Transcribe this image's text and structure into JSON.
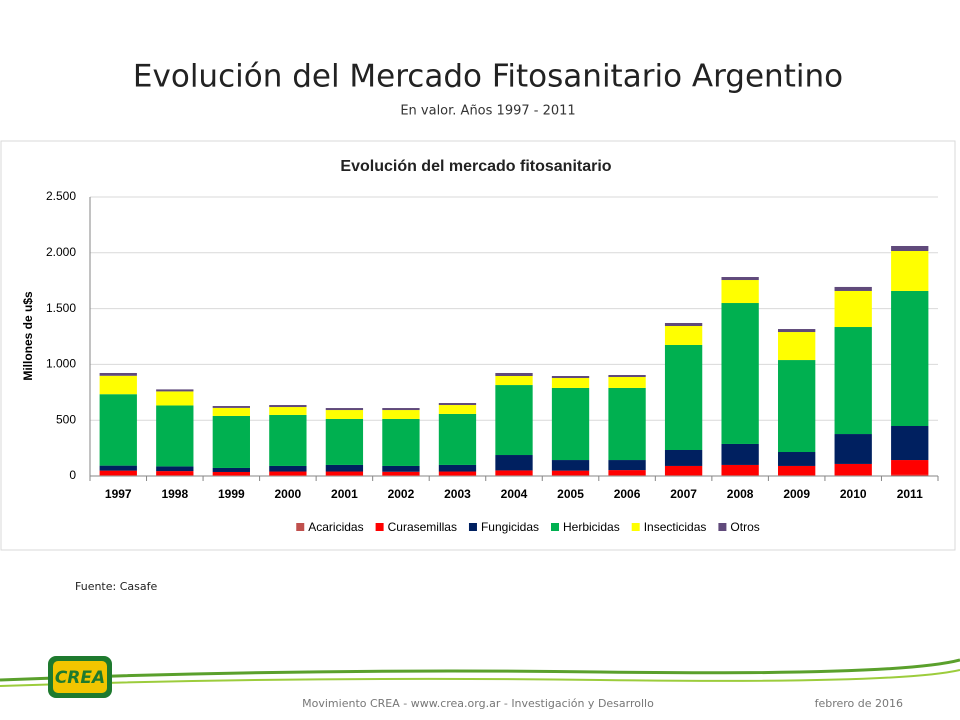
{
  "slide": {
    "title": "Evolución del Mercado Fitosanitario Argentino",
    "subtitle": "En valor. Años 1997 - 2011",
    "source": "Fuente: Casafe",
    "logo": "CREA",
    "footer": "Movimiento CREA - www.crea.org.ar - Investigación y Desarrollo",
    "date": "febrero de 2016"
  },
  "chart_data": {
    "type": "stacked_bar",
    "title": "Evolución del mercado fitosanitario",
    "y_label": "Millones de u$s",
    "categories": [
      "1997",
      "1998",
      "1999",
      "2000",
      "2001",
      "2002",
      "2003",
      "2004",
      "2005",
      "2006",
      "2007",
      "2008",
      "2009",
      "2010",
      "2011"
    ],
    "series": [
      {
        "name": "Acaricidas",
        "color": "#c0504d",
        "values": [
          8,
          8,
          6,
          6,
          6,
          6,
          6,
          8,
          8,
          8,
          8,
          8,
          8,
          8,
          10
        ]
      },
      {
        "name": "Curasemillas",
        "color": "#ff0000",
        "values": [
          40,
          36,
          30,
          34,
          34,
          32,
          34,
          42,
          40,
          45,
          82,
          91,
          82,
          100,
          133
        ]
      },
      {
        "name": "Fungicidas",
        "color": "#002060",
        "values": [
          45,
          42,
          36,
          50,
          59,
          52,
          59,
          138,
          95,
          90,
          143,
          188,
          125,
          268,
          305
        ]
      },
      {
        "name": "Herbicidas",
        "color": "#00b050",
        "values": [
          640,
          546,
          466,
          457,
          412,
          421,
          457,
          627,
          646,
          646,
          941,
          1263,
          824,
          959,
          1210
        ]
      },
      {
        "name": "Insecticidas",
        "color": "#ffff00",
        "values": [
          165,
          126,
          72,
          71,
          80,
          80,
          80,
          81,
          89,
          98,
          170,
          206,
          251,
          323,
          358
        ]
      },
      {
        "name": "Otros",
        "color": "#604a7b",
        "values": [
          25,
          18,
          17,
          18,
          18,
          18,
          18,
          27,
          18,
          18,
          27,
          27,
          27,
          36,
          45
        ]
      }
    ],
    "ylim": [
      0,
      2500
    ],
    "yticks": [
      0,
      500,
      {
        "value": 1000,
        "label": "1.000"
      },
      {
        "value": 1500,
        "label": "1.500"
      },
      {
        "value": 2000,
        "label": "2.000"
      },
      {
        "value": 2500,
        "label": "2.500"
      }
    ],
    "grid": true,
    "legend": "bottom"
  }
}
